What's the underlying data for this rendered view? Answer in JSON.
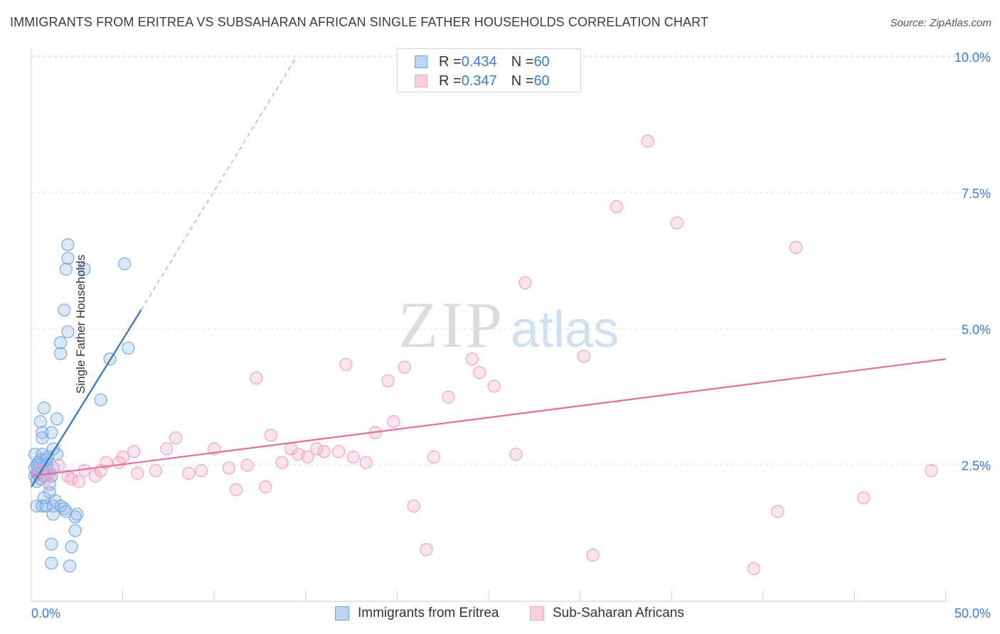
{
  "header": {
    "title": "IMMIGRANTS FROM ERITREA VS SUBSAHARAN AFRICAN SINGLE FATHER HOUSEHOLDS CORRELATION CHART",
    "source": "Source: ZipAtlas.com"
  },
  "watermark": {
    "zip": "ZIP",
    "atlas": "atlas"
  },
  "legend_top": {
    "rows": [
      {
        "r_label": "R = ",
        "r_value": "0.434",
        "n_label": "N = ",
        "n_value": "60"
      },
      {
        "r_label": "R = ",
        "r_value": "0.347",
        "n_label": "N = ",
        "n_value": "60"
      }
    ]
  },
  "chart_data": {
    "type": "scatter",
    "title": "IMMIGRANTS FROM ERITREA VS SUBSAHARAN AFRICAN SINGLE FATHER HOUSEHOLDS CORRELATION CHART",
    "xlabel": "",
    "ylabel": "Single Father Households",
    "xlim": [
      0,
      50
    ],
    "ylim": [
      0,
      10.5
    ],
    "x_tick_labels": [
      "0.0%",
      "50.0%"
    ],
    "y_ticks": [
      2.5,
      5.0,
      7.5,
      10.0
    ],
    "y_tick_labels": [
      "2.5%",
      "5.0%",
      "7.5%",
      "10.0%"
    ],
    "grid": true,
    "legend_position": "bottom",
    "colors": {
      "series1": "#6fa3e8",
      "series1_line": "#2f74d0",
      "series2": "#f4a6bf",
      "series2_line": "#e0709a"
    },
    "series": [
      {
        "name": "Immigrants from Eritrea",
        "r": 0.434,
        "n": 60,
        "trend": {
          "x0": 0.0,
          "y0": 2.1,
          "x1": 6.0,
          "y1": 5.35,
          "dash_to_x": 14.5,
          "dash_to_y": 10.0
        },
        "points": [
          [
            0.2,
            2.3
          ],
          [
            0.3,
            2.5
          ],
          [
            0.2,
            2.7
          ],
          [
            0.4,
            2.45
          ],
          [
            0.3,
            2.2
          ],
          [
            0.5,
            2.6
          ],
          [
            0.6,
            2.4
          ],
          [
            0.8,
            2.5
          ],
          [
            0.4,
            2.35
          ],
          [
            0.7,
            2.3
          ],
          [
            0.9,
            2.4
          ],
          [
            0.5,
            2.25
          ],
          [
            1.0,
            2.35
          ],
          [
            1.1,
            2.3
          ],
          [
            0.6,
            2.7
          ],
          [
            0.4,
            2.55
          ],
          [
            0.3,
            2.35
          ],
          [
            0.8,
            2.6
          ],
          [
            1.2,
            2.45
          ],
          [
            0.5,
            3.3
          ],
          [
            0.6,
            3.1
          ],
          [
            0.7,
            3.55
          ],
          [
            0.6,
            3.0
          ],
          [
            1.1,
            3.1
          ],
          [
            1.2,
            2.8
          ],
          [
            1.4,
            2.7
          ],
          [
            1.4,
            3.35
          ],
          [
            0.9,
            2.65
          ],
          [
            1.0,
            2.15
          ],
          [
            1.0,
            2.0
          ],
          [
            0.3,
            1.75
          ],
          [
            0.6,
            1.75
          ],
          [
            0.7,
            1.9
          ],
          [
            1.2,
            1.75
          ],
          [
            1.2,
            1.6
          ],
          [
            1.3,
            1.85
          ],
          [
            1.8,
            1.7
          ],
          [
            2.4,
            1.55
          ],
          [
            2.5,
            1.6
          ],
          [
            0.8,
            1.75
          ],
          [
            1.6,
            1.75
          ],
          [
            1.9,
            1.65
          ],
          [
            2.4,
            1.3
          ],
          [
            1.1,
            1.05
          ],
          [
            2.2,
            1.0
          ],
          [
            1.1,
            0.7
          ],
          [
            2.1,
            0.65
          ],
          [
            1.6,
            4.75
          ],
          [
            1.6,
            4.55
          ],
          [
            2.0,
            4.95
          ],
          [
            1.8,
            5.35
          ],
          [
            1.9,
            6.1
          ],
          [
            2.0,
            6.3
          ],
          [
            2.0,
            6.55
          ],
          [
            2.9,
            6.1
          ],
          [
            3.8,
            3.7
          ],
          [
            4.3,
            4.45
          ],
          [
            5.1,
            6.2
          ],
          [
            5.3,
            4.65
          ],
          [
            0.2,
            2.45
          ]
        ]
      },
      {
        "name": "Sub-Saharan Africans",
        "r": 0.347,
        "n": 60,
        "trend": {
          "x0": 0.0,
          "y0": 2.3,
          "x1": 50.0,
          "y1": 4.45
        },
        "points": [
          [
            0.5,
            2.4
          ],
          [
            1.0,
            2.35
          ],
          [
            1.5,
            2.5
          ],
          [
            2.0,
            2.3
          ],
          [
            2.2,
            2.25
          ],
          [
            2.6,
            2.2
          ],
          [
            2.9,
            2.4
          ],
          [
            3.5,
            2.3
          ],
          [
            3.8,
            2.4
          ],
          [
            4.1,
            2.55
          ],
          [
            4.8,
            2.55
          ],
          [
            5.0,
            2.65
          ],
          [
            5.6,
            2.75
          ],
          [
            5.8,
            2.35
          ],
          [
            6.8,
            2.4
          ],
          [
            7.4,
            2.8
          ],
          [
            7.9,
            3.0
          ],
          [
            8.6,
            2.35
          ],
          [
            9.3,
            2.4
          ],
          [
            10.0,
            2.8
          ],
          [
            10.8,
            2.45
          ],
          [
            11.2,
            2.05
          ],
          [
            11.8,
            2.5
          ],
          [
            12.3,
            4.1
          ],
          [
            12.8,
            2.1
          ],
          [
            13.1,
            3.05
          ],
          [
            13.7,
            2.55
          ],
          [
            14.2,
            2.8
          ],
          [
            14.6,
            2.7
          ],
          [
            15.1,
            2.65
          ],
          [
            15.6,
            2.8
          ],
          [
            16.0,
            2.75
          ],
          [
            16.8,
            2.75
          ],
          [
            17.2,
            4.35
          ],
          [
            17.6,
            2.65
          ],
          [
            18.3,
            2.55
          ],
          [
            18.8,
            3.1
          ],
          [
            19.5,
            4.05
          ],
          [
            19.8,
            3.3
          ],
          [
            20.4,
            4.3
          ],
          [
            20.9,
            1.75
          ],
          [
            21.6,
            0.95
          ],
          [
            22.0,
            2.65
          ],
          [
            22.8,
            3.75
          ],
          [
            24.1,
            4.45
          ],
          [
            24.5,
            4.2
          ],
          [
            25.3,
            3.95
          ],
          [
            26.5,
            2.7
          ],
          [
            27.0,
            5.85
          ],
          [
            30.2,
            4.5
          ],
          [
            30.7,
            0.85
          ],
          [
            32.0,
            7.25
          ],
          [
            33.7,
            8.45
          ],
          [
            35.3,
            6.95
          ],
          [
            39.5,
            0.6
          ],
          [
            40.8,
            1.65
          ],
          [
            41.8,
            6.5
          ],
          [
            45.5,
            1.9
          ],
          [
            49.2,
            2.4
          ],
          [
            0.8,
            2.25
          ]
        ]
      }
    ]
  }
}
